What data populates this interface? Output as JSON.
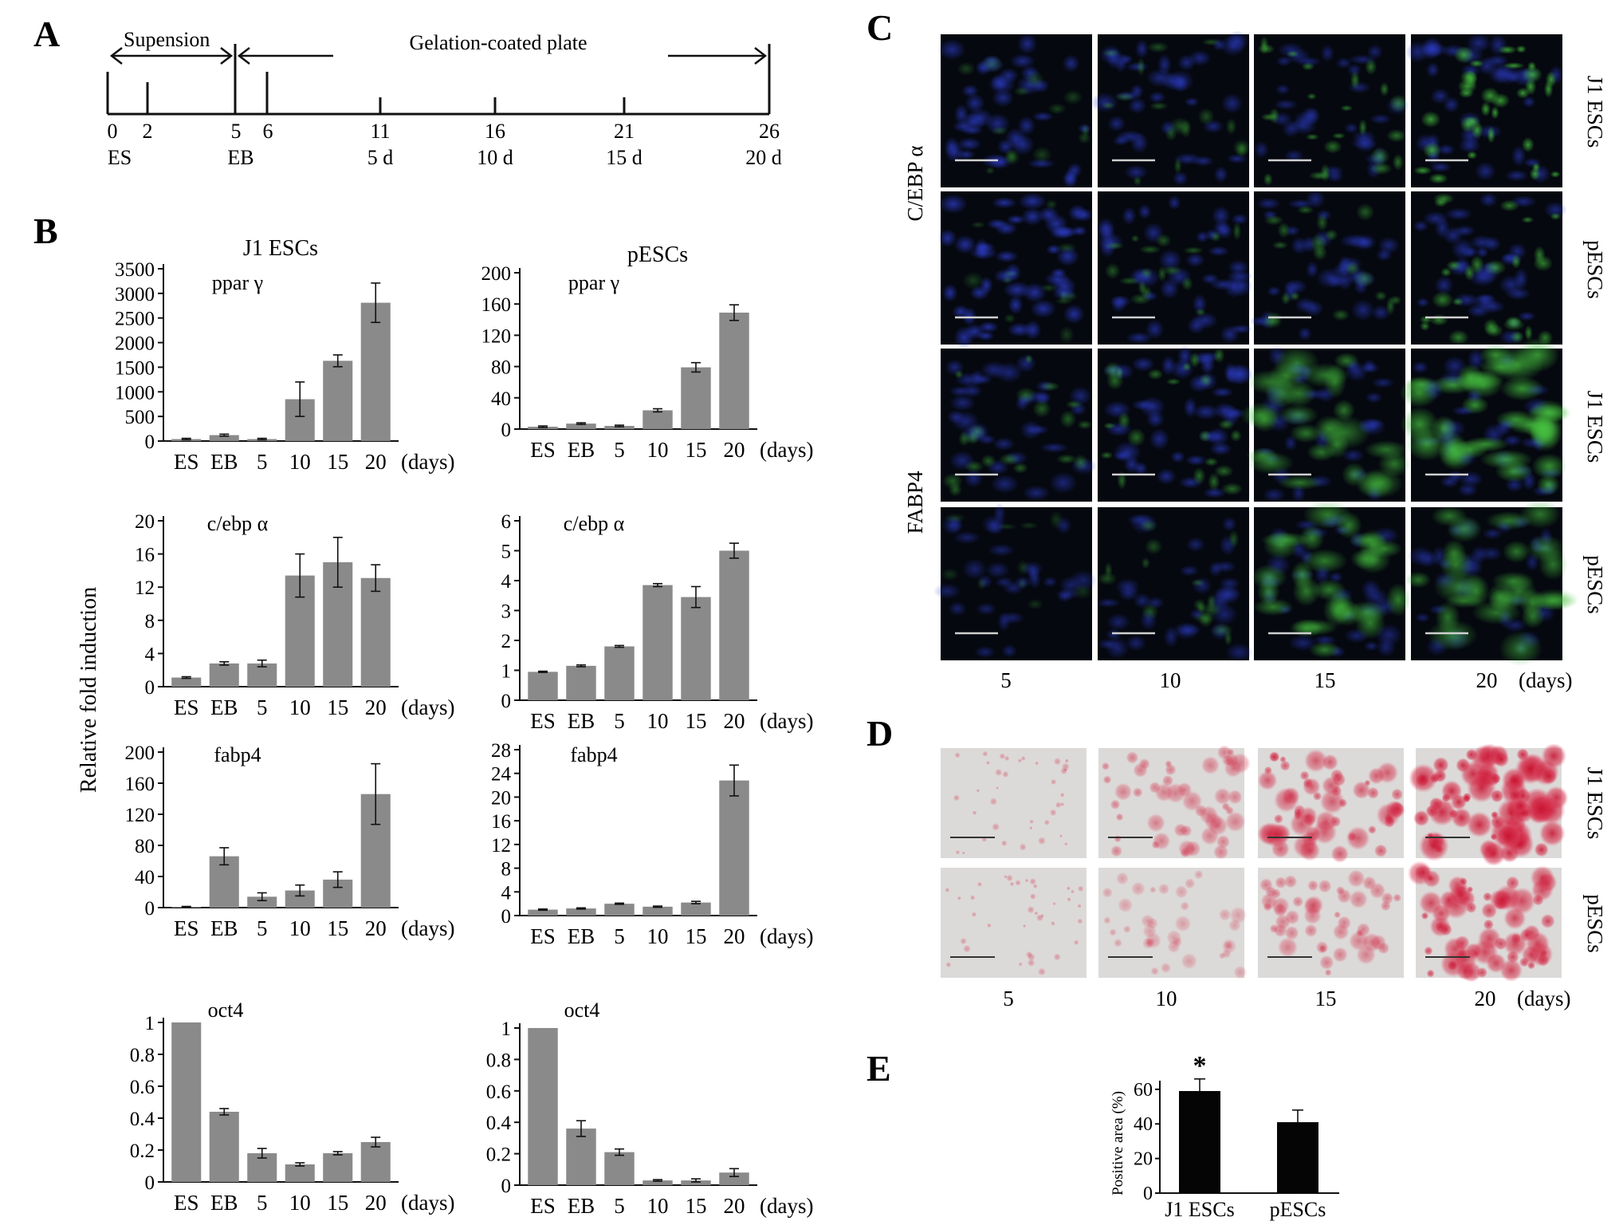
{
  "panels": {
    "A": "A",
    "B": "B",
    "C": "C",
    "D": "D",
    "E": "E"
  },
  "timeline": {
    "suspension_label": "Supension",
    "plate_label": "Gelation-coated plate",
    "days": [
      "0",
      "2",
      "5",
      "6",
      "11",
      "16",
      "21",
      "26"
    ],
    "stage_labels": [
      {
        "day": 0,
        "text": "ES"
      },
      {
        "day": 5,
        "text": "EB"
      },
      {
        "day": 11,
        "text": "5 d"
      },
      {
        "day": 16,
        "text": "10 d"
      },
      {
        "day": 21,
        "text": "15 d"
      },
      {
        "day": 26,
        "text": "20 d"
      }
    ]
  },
  "panel_b": {
    "y_axis_label": "Relative fold induction",
    "col_titles": [
      "J1 ESCs",
      "pESCs"
    ],
    "days_unit": "(days)"
  },
  "chart_data": [
    {
      "type": "bar",
      "id": "j1-ppar",
      "label": "ppar γ",
      "categories": [
        "ES",
        "EB",
        "5",
        "10",
        "15",
        "20"
      ],
      "values": [
        40,
        120,
        40,
        850,
        1630,
        2810
      ],
      "errors": [
        15,
        20,
        15,
        350,
        120,
        400
      ],
      "yticks": [
        "0",
        "500",
        "1000",
        "1500",
        "2000",
        "2500",
        "3000",
        "3500"
      ],
      "ylim": [
        0,
        3500
      ]
    },
    {
      "type": "bar",
      "id": "p-ppar",
      "label": "ppar γ",
      "categories": [
        "ES",
        "EB",
        "5",
        "10",
        "15",
        "20"
      ],
      "values": [
        3,
        7,
        4,
        24,
        79,
        149
      ],
      "errors": [
        1,
        1,
        1,
        2,
        6,
        10
      ],
      "yticks": [
        "0",
        "40",
        "80",
        "120",
        "160",
        "200"
      ],
      "ylim": [
        0,
        200
      ]
    },
    {
      "type": "bar",
      "id": "j1-cebp",
      "label": "c/ebp α",
      "categories": [
        "ES",
        "EB",
        "5",
        "10",
        "15",
        "20"
      ],
      "values": [
        1.1,
        2.8,
        2.8,
        13.4,
        15.0,
        13.1
      ],
      "errors": [
        0.1,
        0.2,
        0.4,
        2.6,
        3.0,
        1.6
      ],
      "yticks": [
        "0",
        "4",
        "8",
        "12",
        "16",
        "20"
      ],
      "ylim": [
        0,
        20
      ]
    },
    {
      "type": "bar",
      "id": "p-cebp",
      "label": "c/ebp α",
      "categories": [
        "ES",
        "EB",
        "5",
        "10",
        "15",
        "20"
      ],
      "values": [
        0.95,
        1.15,
        1.8,
        3.85,
        3.45,
        5.0
      ],
      "errors": [
        0.02,
        0.03,
        0.03,
        0.05,
        0.35,
        0.25
      ],
      "yticks": [
        "0",
        "1",
        "2",
        "3",
        "4",
        "5",
        "6"
      ],
      "ylim": [
        0,
        6
      ]
    },
    {
      "type": "bar",
      "id": "j1-fabp4",
      "label": "fabp4",
      "categories": [
        "ES",
        "EB",
        "5",
        "10",
        "15",
        "20"
      ],
      "values": [
        1,
        66,
        14,
        22,
        36,
        146
      ],
      "errors": [
        0.5,
        11,
        5,
        7,
        10,
        39
      ],
      "yticks": [
        "0",
        "40",
        "80",
        "120",
        "160",
        "200"
      ],
      "ylim": [
        0,
        200
      ]
    },
    {
      "type": "bar",
      "id": "p-fabp4",
      "label": "fabp4",
      "categories": [
        "ES",
        "EB",
        "5",
        "10",
        "15",
        "20"
      ],
      "values": [
        1.0,
        1.2,
        2.0,
        1.5,
        2.2,
        22.8
      ],
      "errors": [
        0.1,
        0.1,
        0.1,
        0.1,
        0.2,
        2.6
      ],
      "yticks": [
        "0",
        "4",
        "8",
        "12",
        "16",
        "20",
        "24",
        "28"
      ],
      "ylim": [
        0,
        28
      ]
    },
    {
      "type": "bar",
      "id": "j1-oct4",
      "label": "oct4",
      "categories": [
        "ES",
        "EB",
        "5",
        "10",
        "15",
        "20"
      ],
      "values": [
        1.0,
        0.44,
        0.18,
        0.11,
        0.18,
        0.25
      ],
      "errors": [
        0,
        0.02,
        0.03,
        0.01,
        0.01,
        0.03
      ],
      "yticks": [
        "0",
        "0.2",
        "0.4",
        "0.6",
        "0.8",
        "1"
      ],
      "ylim": [
        0,
        1
      ]
    },
    {
      "type": "bar",
      "id": "p-oct4",
      "label": "oct4",
      "categories": [
        "ES",
        "EB",
        "5",
        "10",
        "15",
        "20"
      ],
      "values": [
        1.0,
        0.36,
        0.21,
        0.03,
        0.03,
        0.08
      ],
      "errors": [
        0,
        0.05,
        0.02,
        0.005,
        0.01,
        0.025
      ],
      "yticks": [
        "0",
        "0.2",
        "0.4",
        "0.6",
        "0.8",
        "1"
      ],
      "ylim": [
        0,
        1
      ]
    },
    {
      "type": "bar",
      "id": "e-positive",
      "categories": [
        "J1 ESCs",
        "pESCs"
      ],
      "values": [
        59,
        41
      ],
      "errors": [
        7,
        7
      ],
      "ylabel": "Positive area (%)",
      "yticks": [
        "0",
        "20",
        "40",
        "60"
      ],
      "ylim": [
        0,
        65
      ],
      "annotation": "*"
    }
  ],
  "panel_c": {
    "row_group_labels": [
      "C/EBP α",
      "FABP4"
    ],
    "row_side_labels": [
      "J1 ESCs",
      "pESCs",
      "J1 ESCs",
      "pESCs"
    ],
    "col_labels": [
      "5",
      "10",
      "15",
      "20"
    ],
    "days_unit": "(days)"
  },
  "panel_d": {
    "row_side_labels": [
      "J1 ESCs",
      "pESCs"
    ],
    "col_labels": [
      "5",
      "10",
      "15",
      "20"
    ],
    "days_unit": "(days)"
  }
}
